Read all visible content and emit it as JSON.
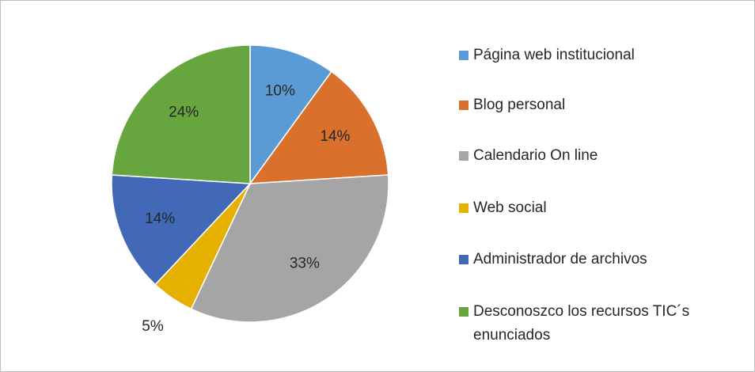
{
  "chart_data": {
    "type": "pie",
    "categories": [
      "Página web institucional",
      "Blog personal",
      "Calendario On line",
      "Web social",
      "Administrador de archivos",
      "Desconoszco los recursos TIC´s enunciados"
    ],
    "values": [
      10,
      14,
      33,
      5,
      14,
      24
    ],
    "value_labels": [
      "10%",
      "14%",
      "33%",
      "5%",
      "14%",
      "24%"
    ],
    "colors": [
      "#5b9bd5",
      "#d9702b",
      "#a5a5a5",
      "#e6b000",
      "#4169b8",
      "#67a53f"
    ],
    "legend": "right"
  }
}
